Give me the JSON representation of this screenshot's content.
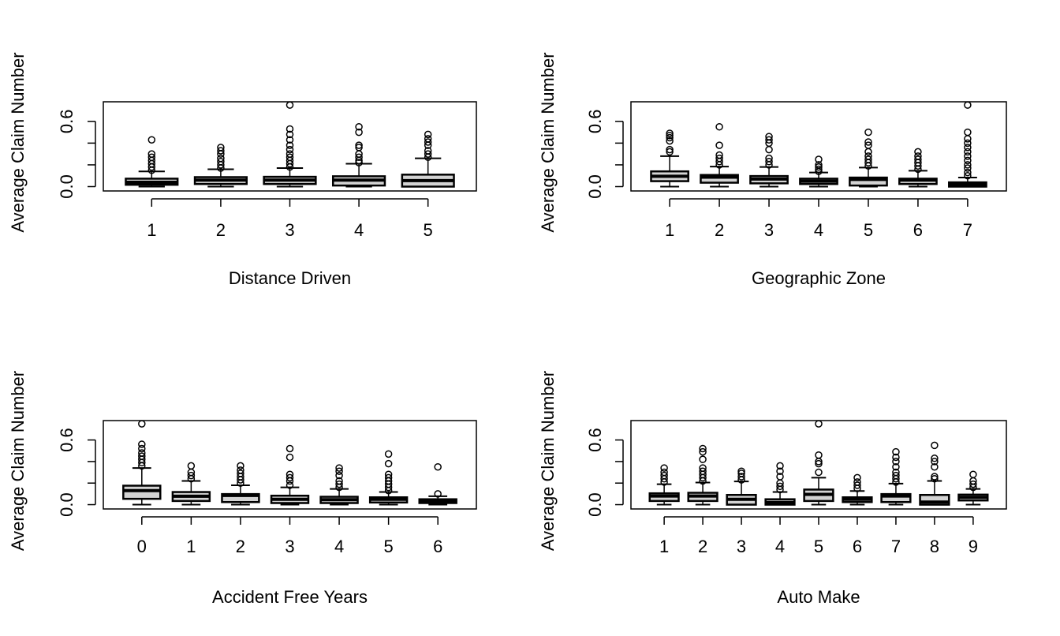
{
  "chart_data": [
    {
      "type": "boxplot",
      "xlabel": "Distance Driven",
      "ylabel": "Average Claim Number",
      "ylim": [
        -0.04,
        0.78
      ],
      "yticks": [
        0.0,
        0.2,
        0.4,
        0.6
      ],
      "ytick_labels": [
        "0.0",
        "",
        "",
        "0.6"
      ],
      "box_fill": "#d3d3d3",
      "categories": [
        "1",
        "2",
        "3",
        "4",
        "5"
      ],
      "boxes": [
        {
          "low": 0.0,
          "q1": 0.017,
          "median": 0.04,
          "q3": 0.073,
          "high": 0.14,
          "outliers": [
            0.15,
            0.18,
            0.21,
            0.24,
            0.27,
            0.3,
            0.43
          ]
        },
        {
          "low": 0.0,
          "q1": 0.024,
          "median": 0.06,
          "q3": 0.087,
          "high": 0.16,
          "outliers": [
            0.17,
            0.2,
            0.23,
            0.26,
            0.3,
            0.33,
            0.36
          ]
        },
        {
          "low": 0.0,
          "q1": 0.024,
          "median": 0.06,
          "q3": 0.09,
          "high": 0.17,
          "outliers": [
            0.18,
            0.21,
            0.24,
            0.27,
            0.3,
            0.34,
            0.38,
            0.43,
            0.48,
            0.53,
            0.75
          ]
        },
        {
          "low": 0.0,
          "q1": 0.01,
          "median": 0.06,
          "q3": 0.095,
          "high": 0.21,
          "outliers": [
            0.22,
            0.24,
            0.27,
            0.3,
            0.36,
            0.38,
            0.5,
            0.55
          ]
        },
        {
          "low": 0.0,
          "q1": 0.0,
          "median": 0.055,
          "q3": 0.11,
          "high": 0.26,
          "outliers": [
            0.27,
            0.3,
            0.33,
            0.38,
            0.41,
            0.44,
            0.48
          ]
        }
      ]
    },
    {
      "type": "boxplot",
      "xlabel": "Geographic Zone",
      "ylabel": "Average Claim Number",
      "ylim": [
        -0.04,
        0.78
      ],
      "yticks": [
        0.0,
        0.2,
        0.4,
        0.6
      ],
      "ytick_labels": [
        "0.0",
        "",
        "",
        "0.6"
      ],
      "box_fill": "#d3d3d3",
      "categories": [
        "1",
        "2",
        "3",
        "4",
        "5",
        "6",
        "7"
      ],
      "boxes": [
        {
          "low": 0.0,
          "q1": 0.05,
          "median": 0.095,
          "q3": 0.14,
          "high": 0.28,
          "outliers": [
            0.32,
            0.34,
            0.42,
            0.45,
            0.47,
            0.49
          ]
        },
        {
          "low": 0.0,
          "q1": 0.036,
          "median": 0.087,
          "q3": 0.107,
          "high": 0.184,
          "outliers": [
            0.2,
            0.23,
            0.26,
            0.29,
            0.38,
            0.55
          ]
        },
        {
          "low": 0.0,
          "q1": 0.03,
          "median": 0.07,
          "q3": 0.097,
          "high": 0.18,
          "outliers": [
            0.2,
            0.23,
            0.26,
            0.34,
            0.4,
            0.43,
            0.46
          ]
        },
        {
          "low": 0.0,
          "q1": 0.024,
          "median": 0.05,
          "q3": 0.073,
          "high": 0.13,
          "outliers": [
            0.14,
            0.16,
            0.18,
            0.2,
            0.25
          ]
        },
        {
          "low": 0.0,
          "q1": 0.01,
          "median": 0.066,
          "q3": 0.083,
          "high": 0.175,
          "outliers": [
            0.19,
            0.22,
            0.25,
            0.28,
            0.32,
            0.38,
            0.41,
            0.5
          ]
        },
        {
          "low": 0.0,
          "q1": 0.024,
          "median": 0.06,
          "q3": 0.073,
          "high": 0.146,
          "outliers": [
            0.16,
            0.19,
            0.22,
            0.25,
            0.28,
            0.32
          ]
        },
        {
          "low": 0.0,
          "q1": 0.0,
          "median": 0.02,
          "q3": 0.039,
          "high": 0.083,
          "outliers": [
            0.1,
            0.13,
            0.17,
            0.2,
            0.24,
            0.28,
            0.32,
            0.36,
            0.4,
            0.44,
            0.5,
            0.75
          ]
        }
      ]
    },
    {
      "type": "boxplot",
      "xlabel": "Accident Free Years",
      "ylabel": "Average Claim Number",
      "ylim": [
        -0.04,
        0.78
      ],
      "yticks": [
        0.0,
        0.2,
        0.4,
        0.6
      ],
      "ytick_labels": [
        "0.0",
        "",
        "",
        "0.6"
      ],
      "box_fill": "#d3d3d3",
      "categories": [
        "0",
        "1",
        "2",
        "3",
        "4",
        "5",
        "6"
      ],
      "boxes": [
        {
          "low": 0.0,
          "q1": 0.054,
          "median": 0.13,
          "q3": 0.176,
          "high": 0.34,
          "outliers": [
            0.36,
            0.39,
            0.42,
            0.45,
            0.48,
            0.52,
            0.56,
            0.75
          ]
        },
        {
          "low": 0.0,
          "q1": 0.034,
          "median": 0.078,
          "q3": 0.117,
          "high": 0.22,
          "outliers": [
            0.24,
            0.27,
            0.3,
            0.36
          ]
        },
        {
          "low": 0.0,
          "q1": 0.024,
          "median": 0.085,
          "q3": 0.098,
          "high": 0.18,
          "outliers": [
            0.2,
            0.23,
            0.26,
            0.29,
            0.32,
            0.36
          ]
        },
        {
          "low": 0.0,
          "q1": 0.015,
          "median": 0.05,
          "q3": 0.083,
          "high": 0.16,
          "outliers": [
            0.18,
            0.22,
            0.25,
            0.28,
            0.44,
            0.52
          ]
        },
        {
          "low": 0.0,
          "q1": 0.015,
          "median": 0.046,
          "q3": 0.073,
          "high": 0.146,
          "outliers": [
            0.16,
            0.19,
            0.22,
            0.27,
            0.31,
            0.34
          ]
        },
        {
          "low": 0.0,
          "q1": 0.02,
          "median": 0.05,
          "q3": 0.068,
          "high": 0.117,
          "outliers": [
            0.13,
            0.16,
            0.19,
            0.22,
            0.25,
            0.28,
            0.38,
            0.47
          ]
        },
        {
          "low": 0.0,
          "q1": 0.015,
          "median": 0.034,
          "q3": 0.05,
          "high": 0.078,
          "outliers": [
            0.1,
            0.35
          ]
        }
      ]
    },
    {
      "type": "boxplot",
      "xlabel": "Auto Make",
      "ylabel": "Average Claim Number",
      "ylim": [
        -0.04,
        0.78
      ],
      "yticks": [
        0.0,
        0.2,
        0.4,
        0.6
      ],
      "ytick_labels": [
        "0.0",
        "",
        "",
        "0.6"
      ],
      "box_fill": "#d3d3d3",
      "categories": [
        "1",
        "2",
        "3",
        "4",
        "5",
        "6",
        "7",
        "8",
        "9"
      ],
      "boxes": [
        {
          "low": 0.0,
          "q1": 0.034,
          "median": 0.08,
          "q3": 0.105,
          "high": 0.19,
          "outliers": [
            0.21,
            0.24,
            0.27,
            0.3,
            0.34
          ]
        },
        {
          "low": 0.0,
          "q1": 0.034,
          "median": 0.08,
          "q3": 0.11,
          "high": 0.205,
          "outliers": [
            0.22,
            0.25,
            0.28,
            0.31,
            0.34,
            0.42,
            0.49,
            0.52
          ]
        },
        {
          "low": 0.0,
          "q1": 0.0,
          "median": 0.05,
          "q3": 0.09,
          "high": 0.215,
          "outliers": [
            0.23,
            0.26,
            0.29,
            0.31
          ]
        },
        {
          "low": 0.0,
          "q1": 0.0,
          "median": 0.02,
          "q3": 0.05,
          "high": 0.117,
          "outliers": [
            0.14,
            0.17,
            0.2,
            0.26,
            0.31,
            0.36
          ]
        },
        {
          "low": 0.0,
          "q1": 0.034,
          "median": 0.095,
          "q3": 0.14,
          "high": 0.25,
          "outliers": [
            0.3,
            0.38,
            0.4,
            0.46,
            0.75
          ]
        },
        {
          "low": 0.0,
          "q1": 0.024,
          "median": 0.05,
          "q3": 0.068,
          "high": 0.127,
          "outliers": [
            0.15,
            0.18,
            0.21,
            0.25
          ]
        },
        {
          "low": 0.0,
          "q1": 0.024,
          "median": 0.08,
          "q3": 0.098,
          "high": 0.195,
          "outliers": [
            0.21,
            0.24,
            0.27,
            0.3,
            0.35,
            0.4,
            0.44,
            0.49
          ]
        },
        {
          "low": 0.0,
          "q1": 0.0,
          "median": 0.024,
          "q3": 0.09,
          "high": 0.22,
          "outliers": [
            0.24,
            0.26,
            0.35,
            0.4,
            0.43,
            0.55
          ]
        },
        {
          "low": 0.0,
          "q1": 0.039,
          "median": 0.068,
          "q3": 0.093,
          "high": 0.146,
          "outliers": [
            0.16,
            0.19,
            0.22,
            0.28
          ]
        }
      ]
    }
  ]
}
